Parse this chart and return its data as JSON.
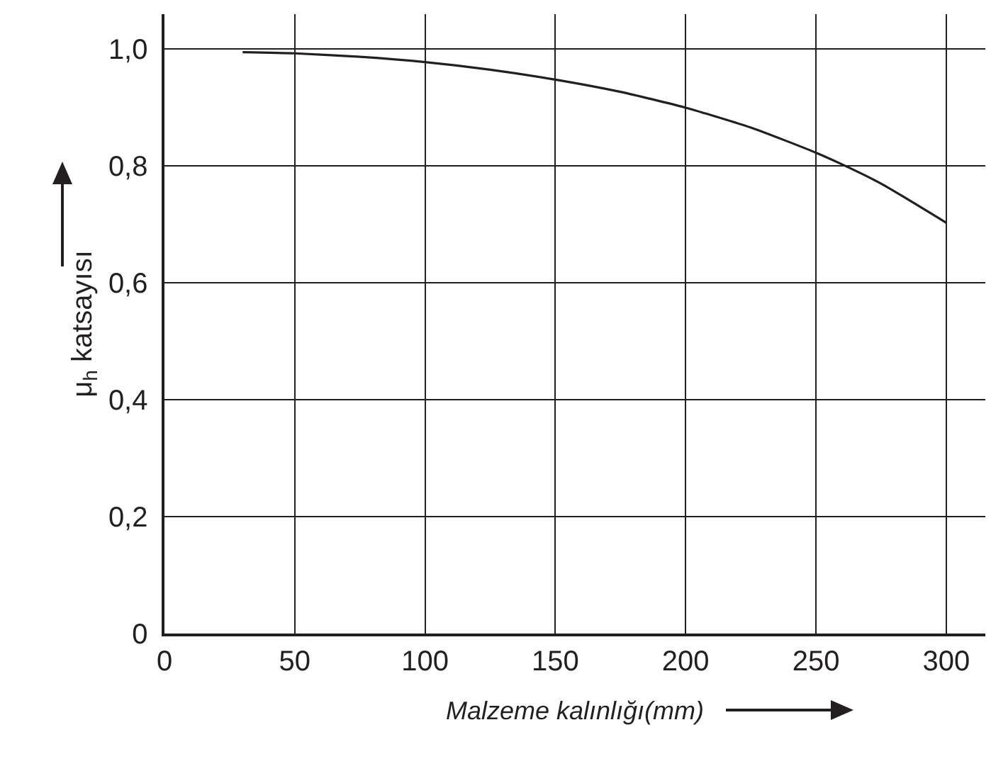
{
  "chart_data": {
    "type": "line",
    "xlabel": "Malzeme kalınlığı(mm)",
    "ylabel": "μ$_{h}$ katsayısı",
    "x": [
      30,
      50,
      75,
      100,
      125,
      150,
      175,
      200,
      225,
      250,
      260,
      275,
      300
    ],
    "series": [
      {
        "color": "#231f20",
        "values": [
          0.995,
          0.993,
          0.987,
          0.978,
          0.965,
          0.948,
          0.927,
          0.9,
          0.866,
          0.823,
          0.803,
          0.77,
          0.703
        ]
      }
    ],
    "xlim": [
      0,
      315
    ],
    "ylim": [
      0,
      1.06
    ],
    "xticks": [
      0,
      50,
      100,
      150,
      200,
      250,
      300
    ],
    "yticks": [
      0,
      {
        "value": 0.2,
        "label": "0,2"
      },
      {
        "value": 0.4,
        "label": "0,4"
      },
      {
        "value": 0.6,
        "label": "0,6"
      },
      {
        "value": 0.8,
        "label": "0,8"
      },
      {
        "value": 1,
        "label": "1,0"
      }
    ],
    "grid": true,
    "marker": "none",
    "line_style": "solid"
  }
}
